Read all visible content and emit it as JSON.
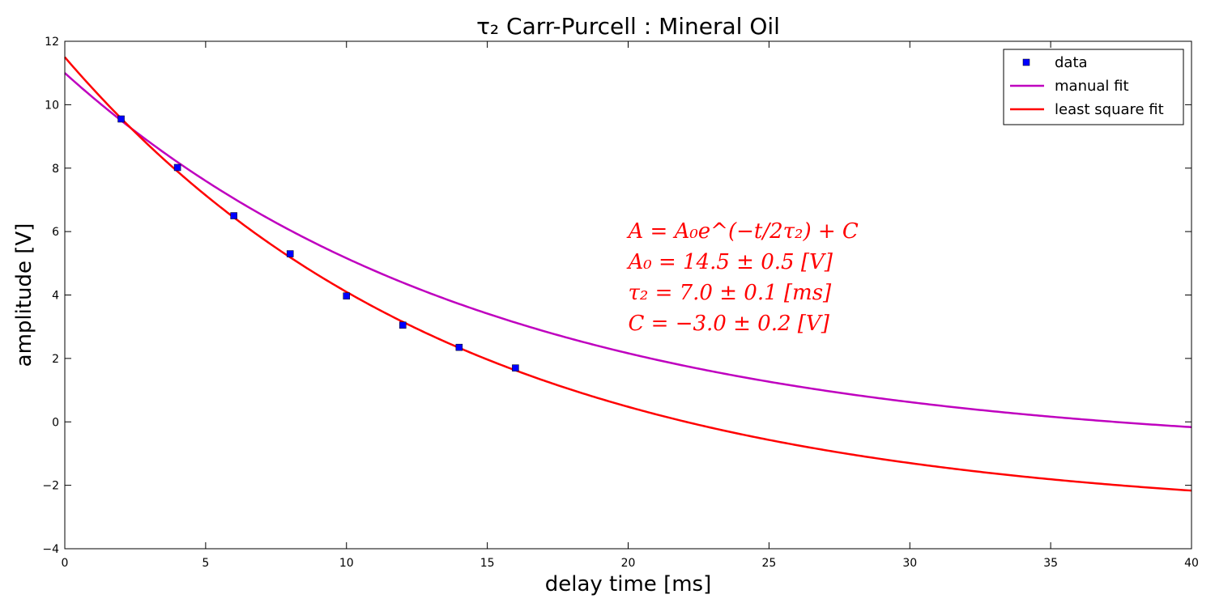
{
  "chart_data": {
    "type": "line",
    "title": "τ₂ Carr-Purcell : Mineral Oil",
    "xlabel": "delay time [ms]",
    "ylabel": "amplitude [V]",
    "xlim": [
      0,
      40
    ],
    "ylim": [
      -4,
      12
    ],
    "xticks": [
      0,
      5,
      10,
      15,
      20,
      25,
      30,
      35,
      40
    ],
    "yticks": [
      -4,
      -2,
      0,
      2,
      4,
      6,
      8,
      10,
      12
    ],
    "grid": false,
    "legend_position": "top-right",
    "series": [
      {
        "name": "data",
        "kind": "scatter",
        "marker": "square",
        "color": "#0000ff",
        "x": [
          2,
          4,
          6,
          8,
          10,
          12,
          14,
          16
        ],
        "y": [
          9.55,
          8.02,
          6.5,
          5.3,
          3.97,
          3.05,
          2.35,
          1.7
        ]
      },
      {
        "name": "manual fit",
        "kind": "line",
        "color": "#bf00bf",
        "model": {
          "A0": 12,
          "tau2": 7.5,
          "C": -1
        }
      },
      {
        "name": "least square fit",
        "kind": "line",
        "color": "#ff0000",
        "model": {
          "A0": 14.5,
          "tau2": 7.0,
          "C": -3.0
        }
      }
    ],
    "annotations": [
      "A = A₀e^(−t/2τ₂) + C",
      "A₀ = 14.5 ± 0.5 [V]",
      "τ₂ = 7.0 ± 0.1 [ms]",
      "C = −3.0 ± 0.2 [V]"
    ],
    "annotation_color": "#ff0000"
  }
}
